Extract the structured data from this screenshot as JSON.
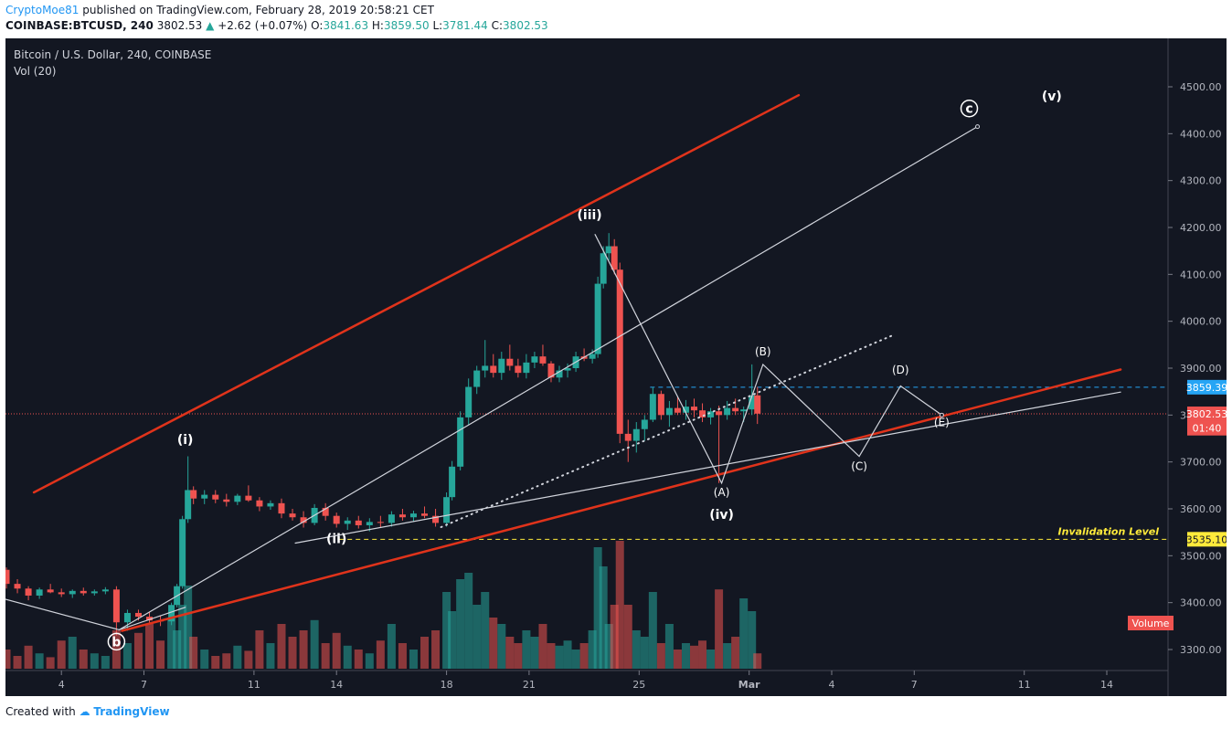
{
  "header": {
    "author": "CryptoMoe81",
    "published_text": "published on TradingView.com, February 28, 2019 20:58:21 CET",
    "symbol": "COINBASE:BTCUSD, 240",
    "last": "3802.53",
    "change": "+2.62 (+0.07%)",
    "o_label": "O:",
    "o_value": "3841.63",
    "h_label": "H:",
    "h_value": "3859.50",
    "l_label": "L:",
    "l_value": "3781.44",
    "c_label": "C:",
    "c_value": "3802.53"
  },
  "legend": {
    "title": "Bitcoin / U.S. Dollar, 240, COINBASE",
    "vol": "Vol (20)",
    "volume_badge": "Volume"
  },
  "footer": {
    "created": "Created with",
    "brand": "TradingView"
  },
  "colors": {
    "background": "#131722",
    "up": "#26a69a",
    "down": "#ef5350",
    "channel": "#e0331b",
    "wave_line": "#d1d4dc",
    "last_price": "#ef5350",
    "level_blue": "#26a5f5",
    "invalidation": "#ffeb3b"
  },
  "chart_data": {
    "type": "candlestick",
    "symbol": "BTCUSD",
    "timeframe": "240",
    "x_ticks": [
      "4",
      "7",
      "11",
      "14",
      "18",
      "21",
      "25",
      "Mar",
      "4",
      "7",
      "11",
      "14"
    ],
    "y_ticks": [
      "3300.00",
      "3400.00",
      "3500.00",
      "3600.00",
      "3700.00",
      "3800.00",
      "3900.00",
      "4000.00",
      "4100.00",
      "4200.00",
      "4300.00",
      "4400.00",
      "4500.00"
    ],
    "ylim": [
      3300,
      4500
    ],
    "price_labels": [
      {
        "text": "3859.39",
        "value": 3859.39,
        "color": "#26a5f5"
      },
      {
        "text": "3802.53",
        "value": 3802.53,
        "color": "#ef5350"
      },
      {
        "text": "01:40",
        "value": 3772,
        "color": "#ef5350"
      },
      {
        "text": "3535.10",
        "value": 3535.1,
        "color": "#ffeb3b"
      }
    ],
    "horizontal_levels": [
      {
        "value": 3859.39,
        "style": "dashed",
        "color": "#26a5f5"
      },
      {
        "value": 3802.53,
        "style": "dotted",
        "color": "#ef5350"
      },
      {
        "value": 3535.1,
        "style": "dashed",
        "color": "#ffeb3b",
        "label": "Invalidation Level"
      }
    ],
    "wave_labels": [
      {
        "text": "b",
        "day": 6.0,
        "price": 3307,
        "circled": true
      },
      {
        "text": "(i)",
        "day": 8.5,
        "price": 3738
      },
      {
        "text": "(ii)",
        "day": 14.0,
        "price": 3527
      },
      {
        "text": "(iii)",
        "day": 23.2,
        "price": 4218
      },
      {
        "text": "(iv)",
        "day": 28.0,
        "price": 3579
      },
      {
        "text": "(v)",
        "day": 40.0,
        "price": 4471
      },
      {
        "text": "c",
        "day": 37.0,
        "price": 4444,
        "circled": true
      },
      {
        "text": "(A)",
        "day": 28.0,
        "price": 3627
      },
      {
        "text": "(B)",
        "day": 29.5,
        "price": 3927
      },
      {
        "text": "(C)",
        "day": 33.0,
        "price": 3683
      },
      {
        "text": "(D)",
        "day": 34.5,
        "price": 3888
      },
      {
        "text": "(E)",
        "day": 36.0,
        "price": 3776
      }
    ],
    "candles": [
      [
        0.0,
        3430,
        3445,
        3420,
        3440
      ],
      [
        0.4,
        3440,
        3450,
        3425,
        3430
      ],
      [
        0.8,
        3430,
        3440,
        3415,
        3425
      ],
      [
        1.2,
        3425,
        3445,
        3420,
        3440
      ],
      [
        1.6,
        3440,
        3485,
        3435,
        3470
      ],
      [
        2.0,
        3470,
        3475,
        3430,
        3440
      ],
      [
        2.4,
        3440,
        3450,
        3420,
        3430
      ],
      [
        2.8,
        3430,
        3435,
        3405,
        3415
      ],
      [
        3.2,
        3415,
        3432,
        3408,
        3428
      ],
      [
        3.6,
        3428,
        3440,
        3420,
        3422
      ],
      [
        4.0,
        3422,
        3430,
        3412,
        3418
      ],
      [
        4.4,
        3418,
        3428,
        3410,
        3425
      ],
      [
        4.8,
        3425,
        3432,
        3415,
        3420
      ],
      [
        5.2,
        3420,
        3428,
        3415,
        3424
      ],
      [
        5.6,
        3424,
        3433,
        3418,
        3428
      ],
      [
        6.0,
        3428,
        3435,
        3330,
        3358
      ],
      [
        6.4,
        3358,
        3385,
        3340,
        3378
      ],
      [
        6.8,
        3378,
        3385,
        3362,
        3370
      ],
      [
        7.2,
        3370,
        3380,
        3355,
        3362
      ],
      [
        7.6,
        3362,
        3372,
        3350,
        3360
      ],
      [
        8.0,
        3360,
        3400,
        3352,
        3395
      ],
      [
        8.2,
        3395,
        3440,
        3390,
        3435
      ],
      [
        8.4,
        3435,
        3585,
        3430,
        3578
      ],
      [
        8.6,
        3578,
        3712,
        3570,
        3640
      ],
      [
        8.8,
        3640,
        3648,
        3610,
        3622
      ],
      [
        9.2,
        3622,
        3640,
        3610,
        3630
      ],
      [
        9.6,
        3630,
        3640,
        3612,
        3620
      ],
      [
        10.0,
        3620,
        3632,
        3605,
        3615
      ],
      [
        10.4,
        3615,
        3632,
        3608,
        3628
      ],
      [
        10.8,
        3628,
        3650,
        3615,
        3618
      ],
      [
        11.2,
        3618,
        3625,
        3595,
        3605
      ],
      [
        11.6,
        3605,
        3618,
        3598,
        3612
      ],
      [
        12.0,
        3612,
        3622,
        3580,
        3590
      ],
      [
        12.4,
        3590,
        3600,
        3575,
        3582
      ],
      [
        12.8,
        3582,
        3595,
        3560,
        3570
      ],
      [
        13.2,
        3570,
        3610,
        3565,
        3602
      ],
      [
        13.6,
        3602,
        3612,
        3575,
        3585
      ],
      [
        14.0,
        3585,
        3592,
        3560,
        3568
      ],
      [
        14.4,
        3568,
        3582,
        3555,
        3575
      ],
      [
        14.8,
        3575,
        3585,
        3558,
        3565
      ],
      [
        15.2,
        3565,
        3580,
        3552,
        3572
      ],
      [
        15.6,
        3572,
        3585,
        3560,
        3570
      ],
      [
        16.0,
        3570,
        3595,
        3562,
        3588
      ],
      [
        16.4,
        3588,
        3600,
        3575,
        3582
      ],
      [
        16.8,
        3582,
        3596,
        3572,
        3590
      ],
      [
        17.2,
        3590,
        3605,
        3580,
        3585
      ],
      [
        17.6,
        3585,
        3600,
        3562,
        3570
      ],
      [
        18.0,
        3570,
        3635,
        3562,
        3625
      ],
      [
        18.2,
        3625,
        3702,
        3618,
        3690
      ],
      [
        18.5,
        3690,
        3808,
        3682,
        3795
      ],
      [
        18.8,
        3795,
        3878,
        3780,
        3860
      ],
      [
        19.1,
        3860,
        3905,
        3845,
        3895
      ],
      [
        19.4,
        3895,
        3960,
        3880,
        3905
      ],
      [
        19.7,
        3905,
        3930,
        3880,
        3890
      ],
      [
        20.0,
        3890,
        3935,
        3875,
        3920
      ],
      [
        20.3,
        3920,
        3950,
        3895,
        3905
      ],
      [
        20.6,
        3905,
        3920,
        3880,
        3890
      ],
      [
        20.9,
        3890,
        3930,
        3878,
        3912
      ],
      [
        21.2,
        3912,
        3935,
        3900,
        3925
      ],
      [
        21.5,
        3925,
        3950,
        3905,
        3910
      ],
      [
        21.8,
        3910,
        3915,
        3870,
        3880
      ],
      [
        22.1,
        3880,
        3905,
        3870,
        3895
      ],
      [
        22.4,
        3895,
        3910,
        3880,
        3900
      ],
      [
        22.7,
        3900,
        3935,
        3892,
        3925
      ],
      [
        23.0,
        3925,
        3942,
        3915,
        3920
      ],
      [
        23.3,
        3920,
        3940,
        3910,
        3930
      ],
      [
        23.5,
        3930,
        4095,
        3922,
        4080
      ],
      [
        23.7,
        4080,
        4160,
        4070,
        4145
      ],
      [
        23.9,
        4145,
        4188,
        4130,
        4160
      ],
      [
        24.1,
        4160,
        4175,
        4100,
        4110
      ],
      [
        24.3,
        4110,
        4125,
        3740,
        3760
      ],
      [
        24.6,
        3760,
        3790,
        3700,
        3745
      ],
      [
        24.9,
        3745,
        3785,
        3720,
        3770
      ],
      [
        25.2,
        3770,
        3800,
        3745,
        3790
      ],
      [
        25.5,
        3790,
        3860,
        3785,
        3845
      ],
      [
        25.8,
        3845,
        3852,
        3790,
        3800
      ],
      [
        26.1,
        3800,
        3830,
        3775,
        3815
      ],
      [
        26.4,
        3815,
        3840,
        3800,
        3805
      ],
      [
        26.7,
        3805,
        3832,
        3790,
        3818
      ],
      [
        27.0,
        3818,
        3835,
        3795,
        3810
      ],
      [
        27.3,
        3810,
        3825,
        3785,
        3795
      ],
      [
        27.6,
        3795,
        3815,
        3780,
        3808
      ],
      [
        27.9,
        3808,
        3820,
        3655,
        3800
      ],
      [
        28.2,
        3800,
        3830,
        3790,
        3815
      ],
      [
        28.5,
        3815,
        3835,
        3800,
        3808
      ],
      [
        28.8,
        3808,
        3818,
        3785,
        3812
      ],
      [
        29.1,
        3812,
        3908,
        3800,
        3842
      ],
      [
        29.3,
        3842,
        3860,
        3781,
        3803
      ]
    ],
    "volumes": [
      [
        0.0,
        0.1
      ],
      [
        0.4,
        0.08
      ],
      [
        0.8,
        0.14
      ],
      [
        1.2,
        0.12
      ],
      [
        1.6,
        0.2
      ],
      [
        2.0,
        0.15
      ],
      [
        2.4,
        0.1
      ],
      [
        2.8,
        0.18
      ],
      [
        3.2,
        0.12
      ],
      [
        3.6,
        0.09
      ],
      [
        4.0,
        0.22
      ],
      [
        4.4,
        0.25
      ],
      [
        4.8,
        0.15
      ],
      [
        5.2,
        0.12
      ],
      [
        5.6,
        0.1
      ],
      [
        6.0,
        0.3
      ],
      [
        6.4,
        0.2
      ],
      [
        6.8,
        0.28
      ],
      [
        7.2,
        0.35
      ],
      [
        7.6,
        0.22
      ],
      [
        8.0,
        0.4
      ],
      [
        8.2,
        0.3
      ],
      [
        8.4,
        0.5
      ],
      [
        8.6,
        0.65
      ],
      [
        8.8,
        0.25
      ],
      [
        9.2,
        0.15
      ],
      [
        9.6,
        0.1
      ],
      [
        10.0,
        0.12
      ],
      [
        10.4,
        0.18
      ],
      [
        10.8,
        0.14
      ],
      [
        11.2,
        0.3
      ],
      [
        11.6,
        0.2
      ],
      [
        12.0,
        0.35
      ],
      [
        12.4,
        0.25
      ],
      [
        12.8,
        0.3
      ],
      [
        13.2,
        0.38
      ],
      [
        13.6,
        0.2
      ],
      [
        14.0,
        0.28
      ],
      [
        14.4,
        0.18
      ],
      [
        14.8,
        0.15
      ],
      [
        15.2,
        0.12
      ],
      [
        15.6,
        0.22
      ],
      [
        16.0,
        0.35
      ],
      [
        16.4,
        0.2
      ],
      [
        16.8,
        0.15
      ],
      [
        17.2,
        0.25
      ],
      [
        17.6,
        0.3
      ],
      [
        18.0,
        0.6
      ],
      [
        18.2,
        0.45
      ],
      [
        18.5,
        0.7
      ],
      [
        18.8,
        0.75
      ],
      [
        19.1,
        0.5
      ],
      [
        19.4,
        0.6
      ],
      [
        19.7,
        0.4
      ],
      [
        20.0,
        0.35
      ],
      [
        20.3,
        0.25
      ],
      [
        20.6,
        0.2
      ],
      [
        20.9,
        0.3
      ],
      [
        21.2,
        0.25
      ],
      [
        21.5,
        0.35
      ],
      [
        21.8,
        0.2
      ],
      [
        22.1,
        0.18
      ],
      [
        22.4,
        0.22
      ],
      [
        22.7,
        0.15
      ],
      [
        23.0,
        0.2
      ],
      [
        23.3,
        0.3
      ],
      [
        23.5,
        0.95
      ],
      [
        23.7,
        0.8
      ],
      [
        23.9,
        0.35
      ],
      [
        24.1,
        0.5
      ],
      [
        24.3,
        1.0
      ],
      [
        24.6,
        0.5
      ],
      [
        24.9,
        0.3
      ],
      [
        25.2,
        0.25
      ],
      [
        25.5,
        0.6
      ],
      [
        25.8,
        0.2
      ],
      [
        26.1,
        0.35
      ],
      [
        26.4,
        0.15
      ],
      [
        26.7,
        0.2
      ],
      [
        27.0,
        0.18
      ],
      [
        27.3,
        0.22
      ],
      [
        27.6,
        0.15
      ],
      [
        27.9,
        0.62
      ],
      [
        28.2,
        0.2
      ],
      [
        28.5,
        0.25
      ],
      [
        28.8,
        0.55
      ],
      [
        29.1,
        0.45
      ],
      [
        29.3,
        0.12
      ]
    ],
    "trendlines": [
      {
        "name": "channel-upper",
        "color": "#e0331b",
        "width": 2.5,
        "style": "solid",
        "points": [
          [
            3.0,
            3635
          ],
          [
            30.8,
            4482
          ]
        ]
      },
      {
        "name": "channel-lower",
        "color": "#e0331b",
        "width": 2.5,
        "style": "solid",
        "points": [
          [
            6.2,
            3340
          ],
          [
            42.5,
            3897
          ]
        ]
      },
      {
        "name": "wave-c-projection",
        "color": "#d1d4dc",
        "width": 1.2,
        "style": "solid",
        "points": [
          [
            6.1,
            3342
          ],
          [
            37.3,
            4415
          ]
        ]
      },
      {
        "name": "iv-support",
        "color": "#d1d4dc",
        "width": 1.2,
        "style": "solid",
        "points": [
          [
            12.5,
            3527
          ],
          [
            42.5,
            3849
          ]
        ]
      },
      {
        "name": "dotted-trend",
        "color": "#d1d4dc",
        "width": 2,
        "style": "dotted",
        "points": [
          [
            17.8,
            3561
          ],
          [
            34.3,
            3972
          ]
        ]
      },
      {
        "name": "wave-path",
        "color": "#d1d4dc",
        "width": 1.2,
        "style": "solid",
        "points": [
          [
            -0.5,
            3446
          ],
          [
            6.1,
            3342
          ],
          [
            8.5,
            3390
          ]
        ]
      },
      {
        "name": "abcde-path",
        "color": "#d1d4dc",
        "width": 1.2,
        "style": "solid",
        "points": [
          [
            23.4,
            4185
          ],
          [
            28.0,
            3655
          ],
          [
            29.5,
            3908
          ],
          [
            33.0,
            3712
          ],
          [
            34.5,
            3862
          ],
          [
            36.0,
            3800
          ]
        ]
      }
    ]
  }
}
